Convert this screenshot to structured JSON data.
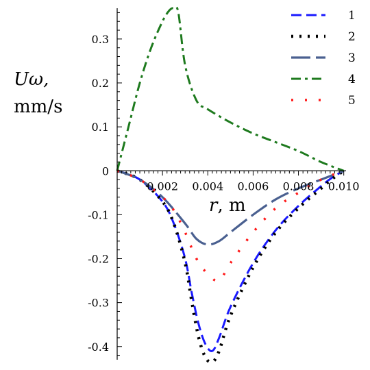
{
  "chart_data": {
    "type": "line",
    "xlabel_var": "r",
    "xlabel_unit": ", m",
    "ylabel_line1": "Uω,",
    "ylabel_line2": "mm/s",
    "xlim": [
      0,
      0.0101
    ],
    "ylim": [
      -0.43,
      0.37
    ],
    "x_ticks": [
      {
        "value": 0.002,
        "label": "0.002"
      },
      {
        "value": 0.004,
        "label": "0.004"
      },
      {
        "value": 0.006,
        "label": "0.006"
      },
      {
        "value": 0.008,
        "label": "0.008"
      },
      {
        "value": 0.01,
        "label": "0.010"
      }
    ],
    "y_ticks": [
      {
        "value": 0.3,
        "label": "0.3"
      },
      {
        "value": 0.2,
        "label": "0.2"
      },
      {
        "value": 0.1,
        "label": "0.1"
      },
      {
        "value": 0,
        "label": "0"
      },
      {
        "value": -0.1,
        "label": "-0.1"
      },
      {
        "value": -0.2,
        "label": "-0.2"
      },
      {
        "value": -0.3,
        "label": "-0.3"
      },
      {
        "value": -0.4,
        "label": "-0.4"
      }
    ],
    "legend_position": "top-right",
    "series": [
      {
        "name": "1",
        "color": "#1a1aff",
        "dash": "dash",
        "x": [
          0,
          0.001,
          0.002,
          0.0025,
          0.003,
          0.0033,
          0.0036,
          0.0039,
          0.0042,
          0.0045,
          0.005,
          0.006,
          0.007,
          0.008,
          0.009,
          0.0095,
          0.01
        ],
        "y": [
          0,
          -0.02,
          -0.07,
          -0.12,
          -0.2,
          -0.28,
          -0.35,
          -0.395,
          -0.41,
          -0.38,
          -0.31,
          -0.21,
          -0.135,
          -0.08,
          -0.035,
          -0.015,
          0
        ]
      },
      {
        "name": "2",
        "color": "#000000",
        "dash": "dot",
        "x": [
          0,
          0.001,
          0.002,
          0.0025,
          0.003,
          0.0033,
          0.0036,
          0.0039,
          0.0042,
          0.0045,
          0.005,
          0.006,
          0.007,
          0.008,
          0.009,
          0.0095,
          0.01
        ],
        "y": [
          0,
          -0.02,
          -0.07,
          -0.12,
          -0.21,
          -0.3,
          -0.38,
          -0.425,
          -0.435,
          -0.41,
          -0.33,
          -0.22,
          -0.14,
          -0.085,
          -0.04,
          -0.018,
          0
        ]
      },
      {
        "name": "3",
        "color": "#4a6090",
        "dash": "longdash",
        "x": [
          0,
          0.001,
          0.002,
          0.003,
          0.0035,
          0.004,
          0.0045,
          0.005,
          0.006,
          0.007,
          0.008,
          0.009,
          0.01
        ],
        "y": [
          0,
          -0.02,
          -0.06,
          -0.12,
          -0.155,
          -0.168,
          -0.16,
          -0.14,
          -0.1,
          -0.065,
          -0.04,
          -0.02,
          0
        ]
      },
      {
        "name": "4",
        "color": "#1e7a1e",
        "dash": "dashdot",
        "x": [
          0,
          0.0005,
          0.001,
          0.0015,
          0.002,
          0.0023,
          0.0025,
          0.0027,
          0.003,
          0.0035,
          0.004,
          0.005,
          0.006,
          0.007,
          0.008,
          0.009,
          0.01
        ],
        "y": [
          0,
          0.1,
          0.2,
          0.28,
          0.34,
          0.365,
          0.37,
          0.36,
          0.24,
          0.16,
          0.14,
          0.11,
          0.085,
          0.065,
          0.045,
          0.02,
          0
        ]
      },
      {
        "name": "5",
        "color": "#ff1a1a",
        "dash": "sparse-dot",
        "x": [
          0,
          0.001,
          0.002,
          0.0025,
          0.003,
          0.0035,
          0.004,
          0.0045,
          0.005,
          0.006,
          0.007,
          0.008,
          0.009,
          0.01
        ],
        "y": [
          0,
          -0.02,
          -0.06,
          -0.09,
          -0.14,
          -0.2,
          -0.235,
          -0.25,
          -0.21,
          -0.14,
          -0.085,
          -0.05,
          -0.02,
          0
        ]
      }
    ]
  }
}
